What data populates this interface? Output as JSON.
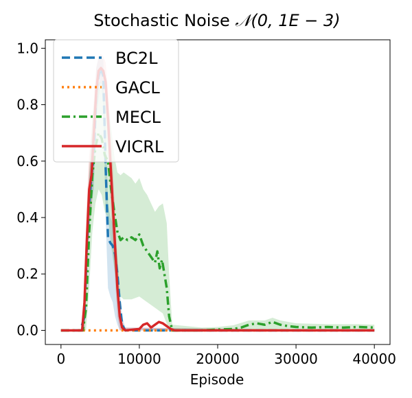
{
  "chart_data": {
    "type": "line",
    "title_prefix": "Stochastic Noise ",
    "title_math": "𝒩(0, 1E − 3)",
    "xlabel": "Episode",
    "ylabel": "",
    "xlim": [
      -2000,
      42000
    ],
    "ylim": [
      -0.05,
      1.03
    ],
    "xticks": [
      0,
      10000,
      20000,
      30000,
      40000
    ],
    "xtick_labels": [
      "0",
      "10000",
      "20000",
      "30000",
      "40000"
    ],
    "yticks": [
      0.0,
      0.2,
      0.4,
      0.6,
      0.8,
      1.0
    ],
    "ytick_labels": [
      "0.0",
      "0.2",
      "0.4",
      "0.6",
      "0.8",
      "1.0"
    ],
    "legend_position": "top-left",
    "series": [
      {
        "name": "BC2L",
        "color": "#1f77b4",
        "style": "dashed",
        "points": [
          [
            0,
            0
          ],
          [
            2500,
            0
          ],
          [
            3000,
            0.05
          ],
          [
            3300,
            0.3
          ],
          [
            3600,
            0.45
          ],
          [
            3900,
            0.55
          ],
          [
            4200,
            0.62
          ],
          [
            4500,
            0.85
          ],
          [
            4800,
            0.9
          ],
          [
            5100,
            0.93
          ],
          [
            5400,
            0.9
          ],
          [
            5700,
            0.58
          ],
          [
            6000,
            0.33
          ],
          [
            6300,
            0.31
          ],
          [
            6600,
            0.3
          ],
          [
            6900,
            0.27
          ],
          [
            7200,
            0.2
          ],
          [
            7500,
            0.1
          ],
          [
            7800,
            0.02
          ],
          [
            8200,
            0
          ],
          [
            40000,
            0
          ]
        ],
        "band_upper": [
          [
            0,
            0
          ],
          [
            2500,
            0
          ],
          [
            3000,
            0.12
          ],
          [
            3300,
            0.4
          ],
          [
            3600,
            0.55
          ],
          [
            3900,
            0.65
          ],
          [
            4200,
            0.75
          ],
          [
            4500,
            0.93
          ],
          [
            4800,
            0.97
          ],
          [
            5100,
            0.97
          ],
          [
            5400,
            0.96
          ],
          [
            5700,
            0.72
          ],
          [
            6000,
            0.45
          ],
          [
            6300,
            0.4
          ],
          [
            6600,
            0.38
          ],
          [
            6900,
            0.34
          ],
          [
            7200,
            0.26
          ],
          [
            7500,
            0.15
          ],
          [
            7800,
            0.05
          ],
          [
            8200,
            0.01
          ],
          [
            40000,
            0
          ]
        ],
        "band_lower": [
          [
            0,
            0
          ],
          [
            2500,
            0
          ],
          [
            3000,
            0
          ],
          [
            3300,
            0.18
          ],
          [
            3600,
            0.35
          ],
          [
            3900,
            0.45
          ],
          [
            4200,
            0.5
          ],
          [
            4500,
            0.75
          ],
          [
            4800,
            0.82
          ],
          [
            5100,
            0.88
          ],
          [
            5400,
            0.8
          ],
          [
            5700,
            0.4
          ],
          [
            6000,
            0.15
          ],
          [
            6300,
            0.12
          ],
          [
            6600,
            0.1
          ],
          [
            6900,
            0.05
          ],
          [
            7200,
            0.02
          ],
          [
            7500,
            0
          ],
          [
            40000,
            0
          ]
        ]
      },
      {
        "name": "GACL",
        "color": "#ff7f0e",
        "style": "dotted",
        "points": [
          [
            0,
            0
          ],
          [
            8000,
            0
          ],
          [
            40000,
            0
          ]
        ]
      },
      {
        "name": "MECL",
        "color": "#2ca02c",
        "style": "dashdot",
        "points": [
          [
            0,
            0
          ],
          [
            2800,
            0
          ],
          [
            3200,
            0.08
          ],
          [
            3600,
            0.35
          ],
          [
            4000,
            0.55
          ],
          [
            4400,
            0.65
          ],
          [
            4800,
            0.7
          ],
          [
            5200,
            0.68
          ],
          [
            5600,
            0.62
          ],
          [
            6000,
            0.6
          ],
          [
            6400,
            0.5
          ],
          [
            6800,
            0.42
          ],
          [
            7200,
            0.35
          ],
          [
            7600,
            0.32
          ],
          [
            8000,
            0.33
          ],
          [
            8500,
            0.32
          ],
          [
            9000,
            0.33
          ],
          [
            9500,
            0.32
          ],
          [
            10000,
            0.34
          ],
          [
            10500,
            0.3
          ],
          [
            11000,
            0.28
          ],
          [
            11500,
            0.26
          ],
          [
            12000,
            0.24
          ],
          [
            12300,
            0.28
          ],
          [
            12600,
            0.22
          ],
          [
            12900,
            0.25
          ],
          [
            13200,
            0.2
          ],
          [
            13500,
            0.15
          ],
          [
            13800,
            0.05
          ],
          [
            14200,
            0
          ],
          [
            18000,
            0
          ],
          [
            20000,
            0.003
          ],
          [
            22000,
            0.005
          ],
          [
            23000,
            0.01
          ],
          [
            24000,
            0.02
          ],
          [
            25000,
            0.025
          ],
          [
            26000,
            0.02
          ],
          [
            27000,
            0.03
          ],
          [
            28000,
            0.02
          ],
          [
            29000,
            0.015
          ],
          [
            30000,
            0.012
          ],
          [
            32000,
            0.01
          ],
          [
            34000,
            0.012
          ],
          [
            36000,
            0.01
          ],
          [
            38000,
            0.012
          ],
          [
            40000,
            0.01
          ]
        ],
        "band_upper": [
          [
            0,
            0
          ],
          [
            2800,
            0
          ],
          [
            3200,
            0.2
          ],
          [
            3600,
            0.55
          ],
          [
            4000,
            0.75
          ],
          [
            4400,
            0.85
          ],
          [
            4800,
            0.88
          ],
          [
            5200,
            0.88
          ],
          [
            5600,
            0.82
          ],
          [
            6000,
            0.8
          ],
          [
            6400,
            0.72
          ],
          [
            6800,
            0.62
          ],
          [
            7200,
            0.56
          ],
          [
            7600,
            0.55
          ],
          [
            8000,
            0.56
          ],
          [
            8500,
            0.55
          ],
          [
            9000,
            0.54
          ],
          [
            9500,
            0.52
          ],
          [
            10000,
            0.54
          ],
          [
            10500,
            0.5
          ],
          [
            11000,
            0.48
          ],
          [
            11500,
            0.45
          ],
          [
            12000,
            0.42
          ],
          [
            12500,
            0.44
          ],
          [
            13000,
            0.45
          ],
          [
            13500,
            0.38
          ],
          [
            13800,
            0.2
          ],
          [
            14200,
            0.02
          ],
          [
            18000,
            0.01
          ],
          [
            20000,
            0.012
          ],
          [
            22000,
            0.018
          ],
          [
            24000,
            0.035
          ],
          [
            26000,
            0.035
          ],
          [
            27000,
            0.045
          ],
          [
            28000,
            0.035
          ],
          [
            30000,
            0.025
          ],
          [
            34000,
            0.022
          ],
          [
            38000,
            0.022
          ],
          [
            40000,
            0.02
          ]
        ],
        "band_lower": [
          [
            0,
            0
          ],
          [
            3200,
            0
          ],
          [
            3600,
            0.15
          ],
          [
            4000,
            0.35
          ],
          [
            4400,
            0.45
          ],
          [
            4800,
            0.5
          ],
          [
            5200,
            0.48
          ],
          [
            5600,
            0.42
          ],
          [
            6000,
            0.4
          ],
          [
            6400,
            0.3
          ],
          [
            6800,
            0.22
          ],
          [
            7200,
            0.15
          ],
          [
            7600,
            0.12
          ],
          [
            8000,
            0.11
          ],
          [
            9000,
            0.11
          ],
          [
            10000,
            0.12
          ],
          [
            11000,
            0.1
          ],
          [
            12000,
            0.08
          ],
          [
            13000,
            0.06
          ],
          [
            13800,
            0
          ],
          [
            40000,
            0
          ]
        ]
      },
      {
        "name": "VICRL",
        "color": "#d62728",
        "style": "solid",
        "points": [
          [
            0,
            0
          ],
          [
            2700,
            0
          ],
          [
            3000,
            0.1
          ],
          [
            3300,
            0.32
          ],
          [
            3600,
            0.5
          ],
          [
            3900,
            0.55
          ],
          [
            4200,
            0.7
          ],
          [
            4500,
            0.85
          ],
          [
            4800,
            0.92
          ],
          [
            5100,
            0.93
          ],
          [
            5400,
            0.92
          ],
          [
            5700,
            0.88
          ],
          [
            6000,
            0.75
          ],
          [
            6300,
            0.6
          ],
          [
            6600,
            0.45
          ],
          [
            6900,
            0.3
          ],
          [
            7200,
            0.15
          ],
          [
            7500,
            0.05
          ],
          [
            7800,
            0.01
          ],
          [
            8200,
            0
          ],
          [
            9000,
            0.002
          ],
          [
            10000,
            0.005
          ],
          [
            10500,
            0.02
          ],
          [
            11000,
            0.025
          ],
          [
            11500,
            0.01
          ],
          [
            12000,
            0.02
          ],
          [
            12500,
            0.03
          ],
          [
            13000,
            0.025
          ],
          [
            13500,
            0.015
          ],
          [
            14000,
            0.005
          ],
          [
            14500,
            0
          ],
          [
            40000,
            0
          ]
        ],
        "band_upper": [
          [
            0,
            0
          ],
          [
            2700,
            0
          ],
          [
            3000,
            0.2
          ],
          [
            3300,
            0.45
          ],
          [
            3600,
            0.62
          ],
          [
            3900,
            0.7
          ],
          [
            4200,
            0.82
          ],
          [
            4500,
            0.93
          ],
          [
            4800,
            0.97
          ],
          [
            5100,
            0.98
          ],
          [
            5400,
            0.97
          ],
          [
            5700,
            0.95
          ],
          [
            6000,
            0.85
          ],
          [
            6300,
            0.72
          ],
          [
            6600,
            0.58
          ],
          [
            6900,
            0.42
          ],
          [
            7200,
            0.25
          ],
          [
            7500,
            0.1
          ],
          [
            7800,
            0.03
          ],
          [
            8200,
            0.01
          ],
          [
            40000,
            0
          ]
        ],
        "band_lower": [
          [
            0,
            0
          ],
          [
            3000,
            0
          ],
          [
            3300,
            0.2
          ],
          [
            3600,
            0.38
          ],
          [
            3900,
            0.42
          ],
          [
            4200,
            0.58
          ],
          [
            4500,
            0.75
          ],
          [
            4800,
            0.86
          ],
          [
            5100,
            0.88
          ],
          [
            5400,
            0.86
          ],
          [
            5700,
            0.8
          ],
          [
            6000,
            0.65
          ],
          [
            6300,
            0.48
          ],
          [
            6600,
            0.32
          ],
          [
            6900,
            0.18
          ],
          [
            7200,
            0.05
          ],
          [
            7500,
            0
          ],
          [
            40000,
            0
          ]
        ]
      }
    ]
  }
}
